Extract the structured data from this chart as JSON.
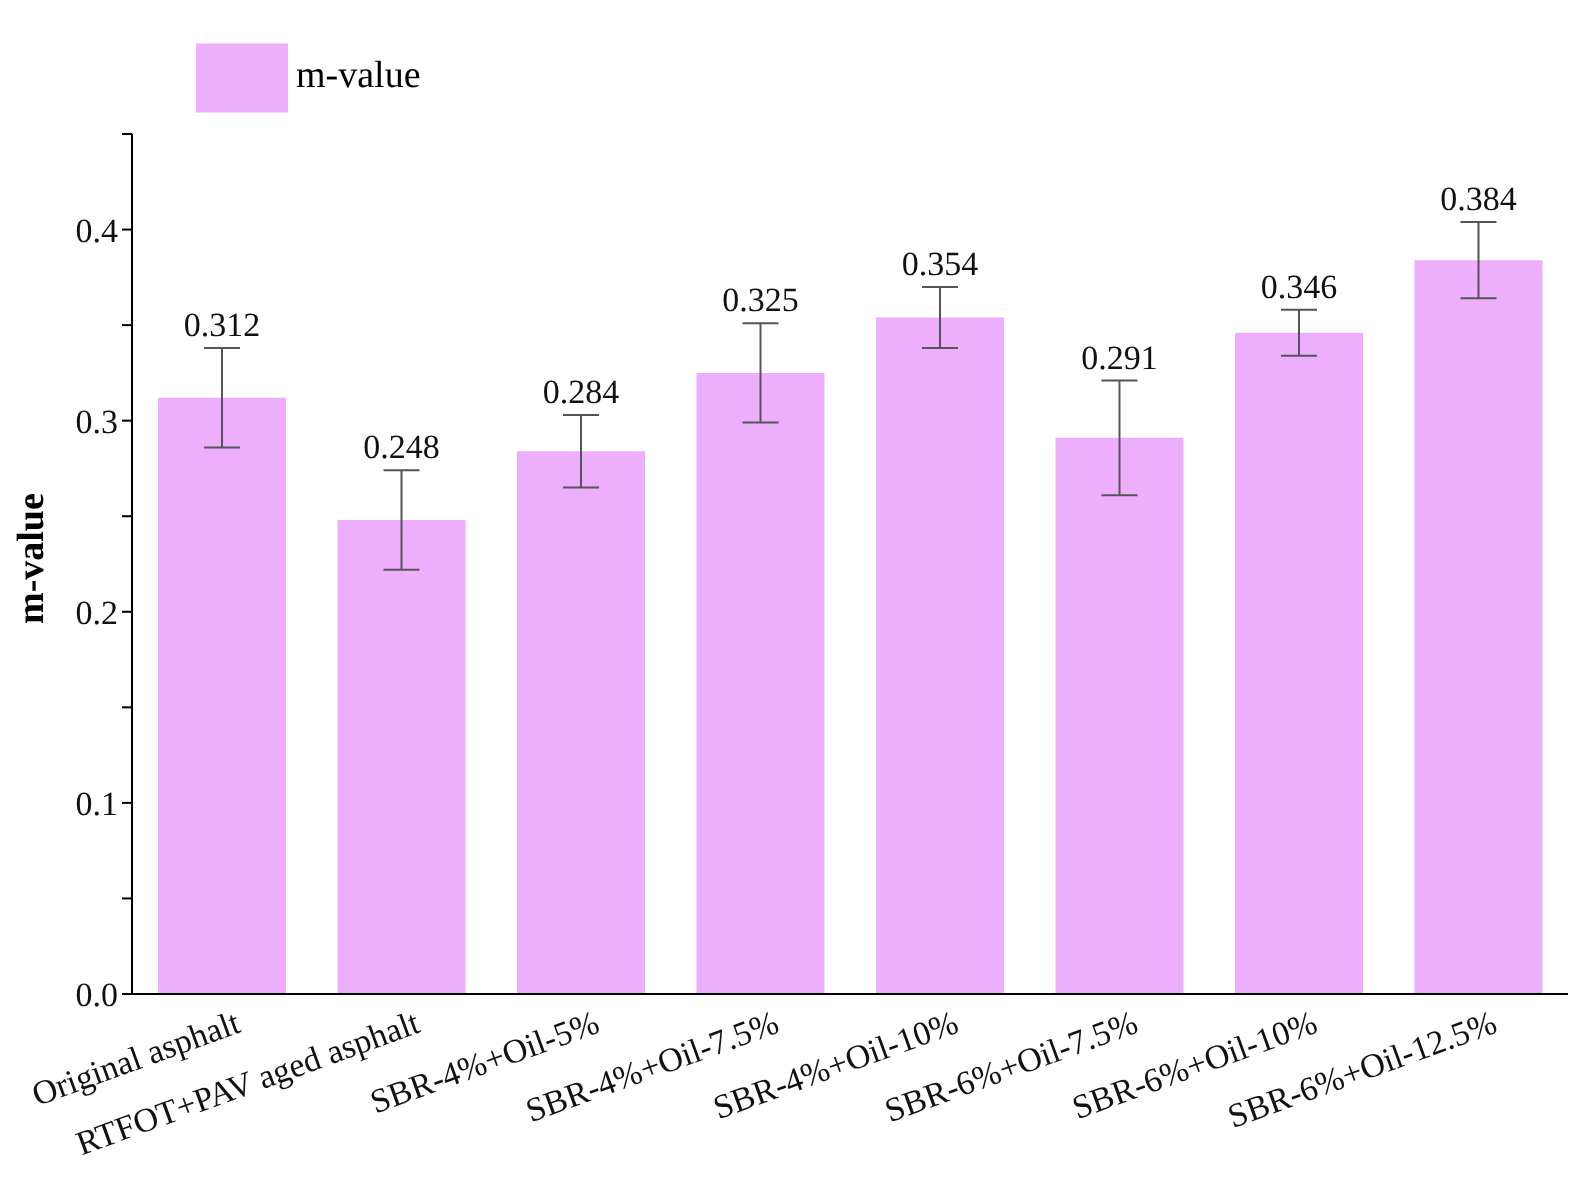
{
  "chart_data": {
    "type": "bar",
    "ylabel": "m-value",
    "categories": [
      "Original asphalt",
      "RTFOT+PAV aged asphalt",
      "SBR-4%+Oil-5%",
      "SBR-4%+Oil-7.5%",
      "SBR-4%+Oil-10%",
      "SBR-6%+Oil-7.5%",
      "SBR-6%+Oil-10%",
      "SBR-6%+Oil-12.5%"
    ],
    "series": [
      {
        "name": "m-value",
        "color": "#eeaefe",
        "values": [
          0.312,
          0.248,
          0.284,
          0.325,
          0.354,
          0.291,
          0.346,
          0.384
        ],
        "errors": [
          0.026,
          0.026,
          0.019,
          0.026,
          0.016,
          0.03,
          0.012,
          0.02
        ]
      }
    ],
    "ylim": [
      0,
      0.45
    ],
    "yticks": [
      {
        "value": 0,
        "label": "0.0"
      },
      {
        "value": 0.05,
        "label": null
      },
      0.1,
      {
        "value": 0.15,
        "label": null
      },
      0.2,
      {
        "value": 0.25,
        "label": null
      },
      0.3,
      {
        "value": 0.35,
        "label": null
      },
      0.4,
      {
        "value": 0.45,
        "label": null
      }
    ],
    "data_labels": true,
    "legend": "top left",
    "grid": false
  }
}
